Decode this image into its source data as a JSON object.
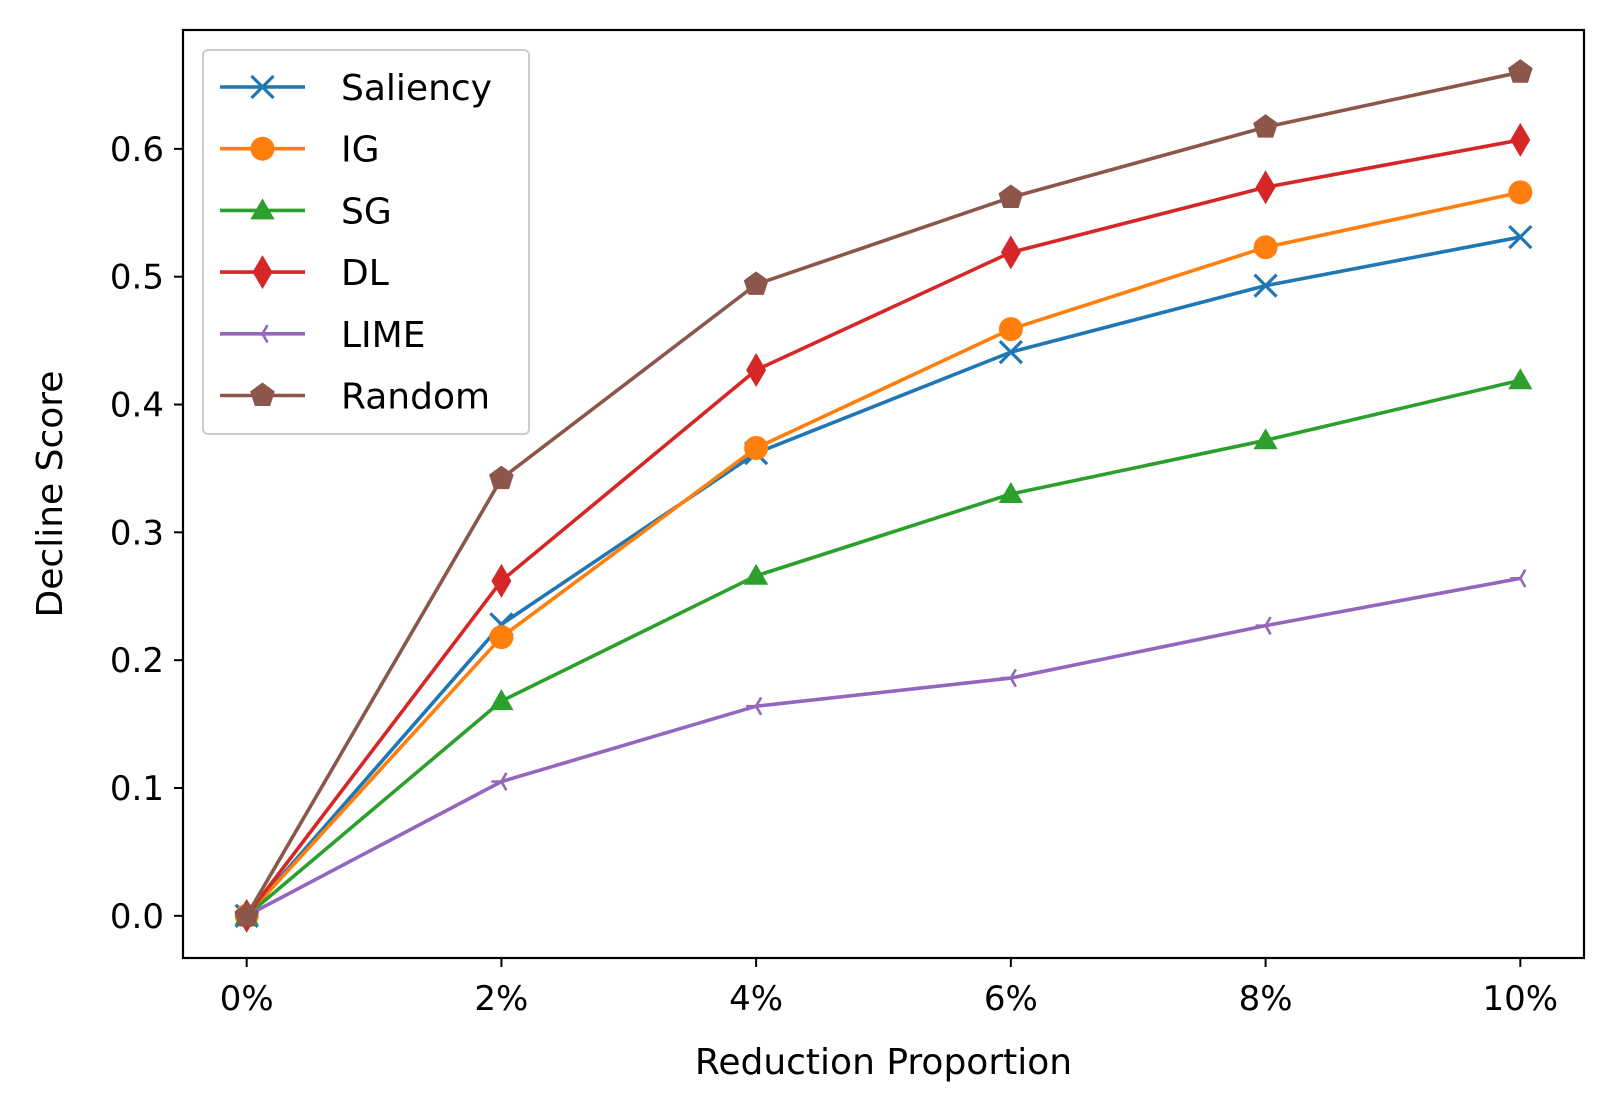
{
  "chart_data": {
    "type": "line",
    "title": "",
    "xlabel": "Reduction Proportion",
    "ylabel": "Decline Score",
    "x": [
      "0%",
      "2%",
      "4%",
      "6%",
      "8%",
      "10%"
    ],
    "x_values": [
      0,
      2,
      4,
      6,
      8,
      10
    ],
    "xlim": [
      -0.5,
      10.5
    ],
    "ylim": [
      -0.033,
      0.693
    ],
    "yticks": [
      0.0,
      0.1,
      0.2,
      0.3,
      0.4,
      0.5,
      0.6
    ],
    "ytick_labels": [
      "0.0",
      "0.1",
      "0.2",
      "0.3",
      "0.4",
      "0.5",
      "0.6"
    ],
    "grid": false,
    "legend_position": "top-left",
    "series": [
      {
        "name": "Saliency",
        "values": [
          0.0,
          0.228,
          0.362,
          0.441,
          0.493,
          0.531
        ],
        "color": "#1f77b4",
        "marker": "x"
      },
      {
        "name": "IG",
        "values": [
          0.0,
          0.218,
          0.366,
          0.459,
          0.523,
          0.566
        ],
        "color": "#ff7f0e",
        "marker": "circle"
      },
      {
        "name": "SG",
        "values": [
          0.0,
          0.168,
          0.266,
          0.33,
          0.372,
          0.419
        ],
        "color": "#2ca02c",
        "marker": "triangle"
      },
      {
        "name": "DL",
        "values": [
          0.0,
          0.262,
          0.427,
          0.519,
          0.57,
          0.607
        ],
        "color": "#d62728",
        "marker": "diamond"
      },
      {
        "name": "LIME",
        "values": [
          0.0,
          0.105,
          0.164,
          0.186,
          0.227,
          0.264
        ],
        "color": "#9467bd",
        "marker": "tri-left"
      },
      {
        "name": "Random",
        "values": [
          0.0,
          0.342,
          0.494,
          0.562,
          0.617,
          0.66
        ],
        "color": "#8c564b",
        "marker": "pentagon"
      }
    ]
  }
}
